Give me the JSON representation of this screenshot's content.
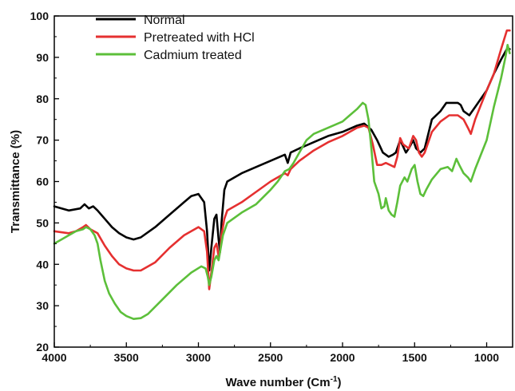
{
  "chart_data": {
    "type": "line",
    "xlabel": "Wave number (Cm",
    "xlabel_sup": "-1",
    "xlabel_close": ")",
    "ylabel": "Transmittance (%)",
    "xlim": [
      4000,
      820
    ],
    "ylim": [
      20,
      100
    ],
    "x_reversed": true,
    "xticks": [
      4000,
      3500,
      3000,
      2500,
      2000,
      1500,
      1000
    ],
    "yticks": [
      20,
      30,
      40,
      50,
      60,
      70,
      80,
      90,
      100
    ],
    "legend_position": "top-left",
    "grid": false,
    "series": [
      {
        "name": "Normal",
        "color": "#000000",
        "points": [
          [
            4000,
            54
          ],
          [
            3900,
            53
          ],
          [
            3820,
            53.5
          ],
          [
            3790,
            54.5
          ],
          [
            3760,
            53.5
          ],
          [
            3730,
            54
          ],
          [
            3700,
            53
          ],
          [
            3650,
            51
          ],
          [
            3600,
            49
          ],
          [
            3550,
            47.5
          ],
          [
            3500,
            46.5
          ],
          [
            3450,
            46
          ],
          [
            3400,
            46.5
          ],
          [
            3300,
            49
          ],
          [
            3200,
            52
          ],
          [
            3100,
            55
          ],
          [
            3050,
            56.5
          ],
          [
            3000,
            57
          ],
          [
            2960,
            55
          ],
          [
            2940,
            48
          ],
          [
            2925,
            38.5
          ],
          [
            2910,
            44
          ],
          [
            2890,
            51
          ],
          [
            2875,
            52
          ],
          [
            2860,
            46
          ],
          [
            2850,
            43
          ],
          [
            2840,
            50
          ],
          [
            2820,
            58
          ],
          [
            2800,
            60
          ],
          [
            2700,
            62
          ],
          [
            2600,
            63.5
          ],
          [
            2500,
            65
          ],
          [
            2400,
            66.5
          ],
          [
            2380,
            64.5
          ],
          [
            2360,
            67
          ],
          [
            2300,
            68
          ],
          [
            2200,
            69.5
          ],
          [
            2100,
            71
          ],
          [
            2000,
            72
          ],
          [
            1900,
            73.5
          ],
          [
            1850,
            74
          ],
          [
            1800,
            72.5
          ],
          [
            1760,
            70
          ],
          [
            1720,
            67
          ],
          [
            1680,
            66
          ],
          [
            1650,
            66.5
          ],
          [
            1630,
            67
          ],
          [
            1600,
            70
          ],
          [
            1560,
            67
          ],
          [
            1540,
            68
          ],
          [
            1510,
            70
          ],
          [
            1490,
            68
          ],
          [
            1460,
            67
          ],
          [
            1430,
            68
          ],
          [
            1380,
            75
          ],
          [
            1320,
            77
          ],
          [
            1280,
            79
          ],
          [
            1240,
            79
          ],
          [
            1200,
            79
          ],
          [
            1180,
            78.5
          ],
          [
            1160,
            77
          ],
          [
            1120,
            76
          ],
          [
            1080,
            78
          ],
          [
            1000,
            82
          ],
          [
            950,
            86
          ],
          [
            900,
            89.5
          ],
          [
            860,
            92
          ],
          [
            840,
            92
          ]
        ]
      },
      {
        "name": "Pretreated with HCl",
        "color": "#e53030",
        "points": [
          [
            4000,
            48
          ],
          [
            3900,
            47.5
          ],
          [
            3850,
            48
          ],
          [
            3800,
            49
          ],
          [
            3780,
            49.5
          ],
          [
            3750,
            48.5
          ],
          [
            3700,
            47.5
          ],
          [
            3650,
            44.5
          ],
          [
            3600,
            42
          ],
          [
            3550,
            40
          ],
          [
            3500,
            39
          ],
          [
            3450,
            38.5
          ],
          [
            3400,
            38.5
          ],
          [
            3300,
            40.5
          ],
          [
            3200,
            44
          ],
          [
            3100,
            47
          ],
          [
            3000,
            49
          ],
          [
            2960,
            48
          ],
          [
            2940,
            43
          ],
          [
            2925,
            34
          ],
          [
            2910,
            38
          ],
          [
            2890,
            44
          ],
          [
            2875,
            45
          ],
          [
            2860,
            42
          ],
          [
            2850,
            43
          ],
          [
            2840,
            47
          ],
          [
            2820,
            51
          ],
          [
            2800,
            53
          ],
          [
            2700,
            55
          ],
          [
            2600,
            57.5
          ],
          [
            2500,
            60
          ],
          [
            2400,
            62
          ],
          [
            2380,
            61.5
          ],
          [
            2360,
            63
          ],
          [
            2300,
            65
          ],
          [
            2200,
            67.5
          ],
          [
            2100,
            69.5
          ],
          [
            2000,
            71
          ],
          [
            1900,
            73
          ],
          [
            1850,
            73.5
          ],
          [
            1820,
            73
          ],
          [
            1790,
            69
          ],
          [
            1760,
            64
          ],
          [
            1730,
            64
          ],
          [
            1700,
            64.5
          ],
          [
            1670,
            64
          ],
          [
            1640,
            63.5
          ],
          [
            1620,
            66
          ],
          [
            1600,
            70.5
          ],
          [
            1580,
            69
          ],
          [
            1560,
            68.5
          ],
          [
            1540,
            68
          ],
          [
            1510,
            71
          ],
          [
            1490,
            70
          ],
          [
            1470,
            67
          ],
          [
            1450,
            66
          ],
          [
            1430,
            67
          ],
          [
            1380,
            72
          ],
          [
            1320,
            74.5
          ],
          [
            1260,
            76
          ],
          [
            1200,
            76
          ],
          [
            1160,
            75
          ],
          [
            1130,
            73
          ],
          [
            1110,
            71.5
          ],
          [
            1080,
            75
          ],
          [
            1000,
            82
          ],
          [
            950,
            86
          ],
          [
            900,
            92
          ],
          [
            860,
            96.5
          ],
          [
            840,
            96.5
          ]
        ]
      },
      {
        "name": "Cadmium treated",
        "color": "#5cbf3a",
        "points": [
          [
            4000,
            45
          ],
          [
            3950,
            46
          ],
          [
            3900,
            47
          ],
          [
            3850,
            48
          ],
          [
            3800,
            48.5
          ],
          [
            3780,
            49
          ],
          [
            3750,
            48.5
          ],
          [
            3720,
            47
          ],
          [
            3700,
            45
          ],
          [
            3680,
            41
          ],
          [
            3650,
            36
          ],
          [
            3620,
            33
          ],
          [
            3580,
            30.5
          ],
          [
            3540,
            28.5
          ],
          [
            3500,
            27.5
          ],
          [
            3450,
            26.8
          ],
          [
            3400,
            27
          ],
          [
            3350,
            28
          ],
          [
            3250,
            31.5
          ],
          [
            3150,
            35
          ],
          [
            3050,
            38
          ],
          [
            2980,
            39.5
          ],
          [
            2950,
            39
          ],
          [
            2935,
            37
          ],
          [
            2925,
            35
          ],
          [
            2910,
            37
          ],
          [
            2890,
            41
          ],
          [
            2875,
            42
          ],
          [
            2860,
            41
          ],
          [
            2850,
            43
          ],
          [
            2830,
            47
          ],
          [
            2800,
            50
          ],
          [
            2700,
            52.5
          ],
          [
            2600,
            54.5
          ],
          [
            2500,
            58
          ],
          [
            2450,
            60
          ],
          [
            2400,
            62.5
          ],
          [
            2370,
            63
          ],
          [
            2340,
            64.5
          ],
          [
            2300,
            67
          ],
          [
            2250,
            70
          ],
          [
            2200,
            71.5
          ],
          [
            2100,
            73
          ],
          [
            2000,
            74.5
          ],
          [
            1950,
            76
          ],
          [
            1900,
            77.5
          ],
          [
            1860,
            79
          ],
          [
            1840,
            78.5
          ],
          [
            1820,
            75
          ],
          [
            1800,
            68
          ],
          [
            1780,
            60
          ],
          [
            1750,
            57
          ],
          [
            1730,
            53.5
          ],
          [
            1710,
            54
          ],
          [
            1700,
            56
          ],
          [
            1680,
            53
          ],
          [
            1660,
            52
          ],
          [
            1640,
            51.5
          ],
          [
            1620,
            55
          ],
          [
            1600,
            59
          ],
          [
            1570,
            61
          ],
          [
            1550,
            60
          ],
          [
            1520,
            63
          ],
          [
            1500,
            64
          ],
          [
            1480,
            60
          ],
          [
            1460,
            57
          ],
          [
            1440,
            56.5
          ],
          [
            1420,
            58
          ],
          [
            1380,
            60.5
          ],
          [
            1320,
            63
          ],
          [
            1270,
            63.5
          ],
          [
            1240,
            62.5
          ],
          [
            1210,
            65.5
          ],
          [
            1190,
            64
          ],
          [
            1160,
            62
          ],
          [
            1130,
            61
          ],
          [
            1110,
            60
          ],
          [
            1080,
            63
          ],
          [
            1000,
            70
          ],
          [
            950,
            78
          ],
          [
            900,
            85
          ],
          [
            870,
            90
          ],
          [
            855,
            93
          ],
          [
            840,
            91
          ]
        ]
      }
    ]
  }
}
